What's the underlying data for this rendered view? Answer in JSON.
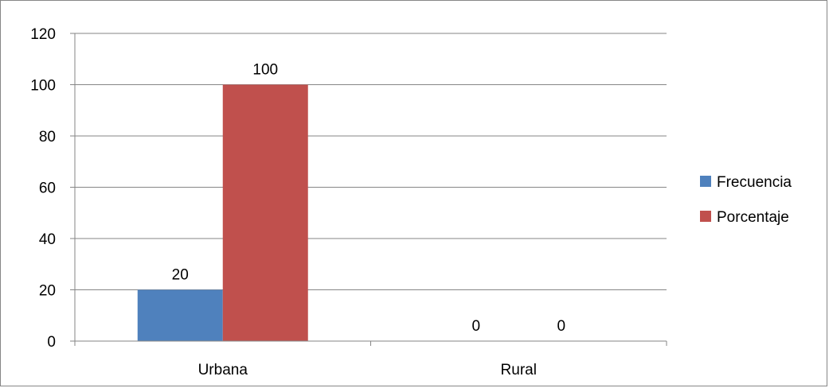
{
  "chart_data": {
    "type": "bar",
    "categories": [
      "Urbana",
      "Rural"
    ],
    "series": [
      {
        "name": "Frecuencia",
        "values": [
          20,
          0
        ],
        "color": "#4f81bd"
      },
      {
        "name": "Porcentaje",
        "values": [
          100,
          0
        ],
        "color": "#c0504d"
      }
    ],
    "ylim": [
      0,
      120
    ],
    "yticks": [
      0,
      20,
      40,
      60,
      80,
      100,
      120
    ],
    "grid": true,
    "legend": "right",
    "data_labels": true
  }
}
